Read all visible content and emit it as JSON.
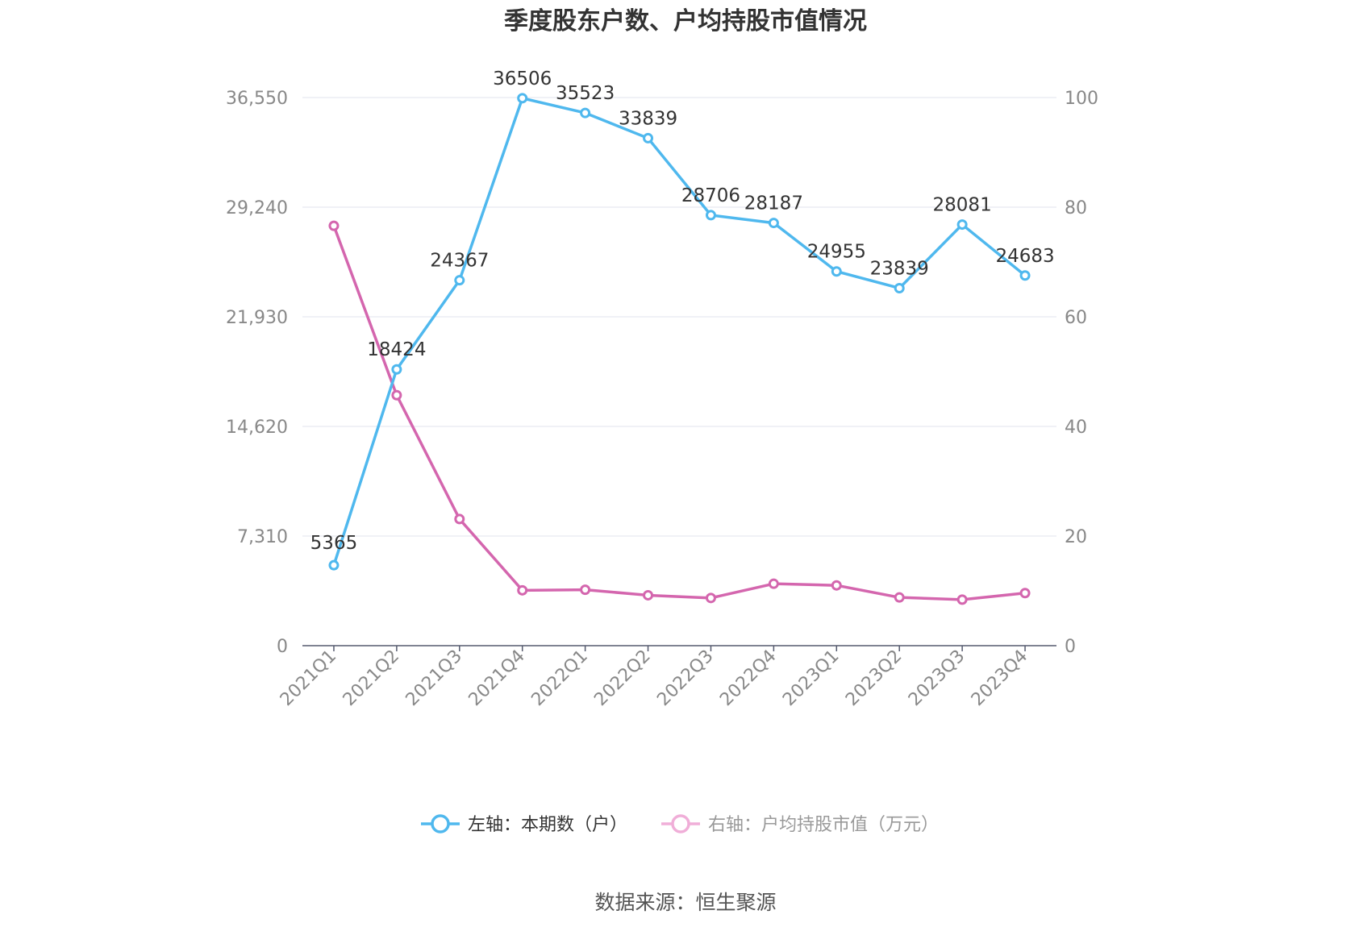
{
  "chart_data": {
    "type": "line",
    "title": "季度股东户数、户均持股市值情况",
    "categories": [
      "2021Q1",
      "2021Q2",
      "2021Q3",
      "2021Q4",
      "2022Q1",
      "2022Q2",
      "2022Q3",
      "2022Q4",
      "2023Q1",
      "2023Q2",
      "2023Q3",
      "2023Q4"
    ],
    "y_left": {
      "ticks": [
        "0",
        "7,310",
        "14,620",
        "21,930",
        "29,240",
        "36,550"
      ],
      "range": [
        0,
        36550
      ]
    },
    "y_right": {
      "ticks": [
        "0",
        "20",
        "40",
        "60",
        "80",
        "100"
      ],
      "range": [
        0,
        100
      ]
    },
    "series": [
      {
        "name": "左轴：本期数（户）",
        "axis": "left",
        "color": "#4FB8EE",
        "values": [
          5365,
          18424,
          24367,
          36506,
          35523,
          33839,
          28706,
          28187,
          24955,
          23839,
          28081,
          24683
        ],
        "labels": [
          "5365",
          "18424",
          "24367",
          "36506",
          "35523",
          "33839",
          "28706",
          "28187",
          "24955",
          "23839",
          "28081",
          "24683"
        ]
      },
      {
        "name": "右轴：户均持股市值（万元）",
        "axis": "right",
        "color": "#D466AE",
        "values": [
          76.6,
          45.7,
          23.1,
          10.1,
          10.2,
          9.2,
          8.7,
          11.3,
          11.0,
          8.8,
          8.4,
          9.6
        ]
      }
    ],
    "legend_position": "bottom-center",
    "source": "数据来源：恒生聚源"
  }
}
